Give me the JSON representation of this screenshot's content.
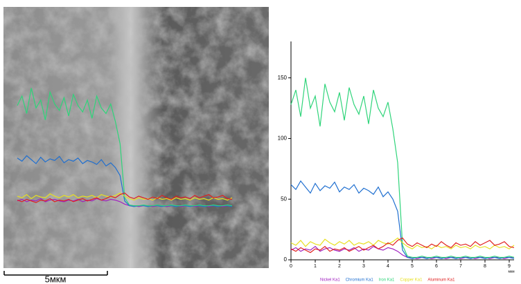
{
  "chart_data": {
    "type": "line",
    "scale_bar_label": "5мкм",
    "x_label": "мкм",
    "x": [
      0,
      0.2,
      0.4,
      0.6,
      0.8,
      1,
      1.2,
      1.4,
      1.6,
      1.8,
      2,
      2.2,
      2.4,
      2.6,
      2.8,
      3,
      3.2,
      3.4,
      3.6,
      3.8,
      4,
      4.2,
      4.4,
      4.6,
      4.8,
      5,
      5.2,
      5.4,
      5.6,
      5.8,
      6,
      6.2,
      6.4,
      6.6,
      6.8,
      7,
      7.2,
      7.4,
      7.6,
      7.8,
      8,
      8.2,
      8.4,
      8.6,
      8.8,
      9,
      9.2
    ],
    "xlim": [
      0,
      9.2
    ],
    "xticks": [
      0,
      1,
      2,
      3,
      4,
      5,
      6,
      7,
      8,
      9
    ],
    "ylim": [
      0,
      180
    ],
    "yticks": [
      0,
      50,
      100,
      150
    ],
    "series": [
      {
        "name": "Nickel Ka1",
        "color": "#a020c0",
        "values": [
          8,
          10,
          7,
          9,
          8,
          11,
          7,
          9,
          10,
          8,
          7,
          9,
          8,
          10,
          7,
          9,
          8,
          11,
          9,
          8,
          10,
          9,
          7,
          4,
          2,
          2,
          1,
          2,
          2,
          1,
          2,
          2,
          1,
          2,
          2,
          1,
          2,
          2,
          1,
          2,
          2,
          1,
          2,
          2,
          1,
          2,
          2
        ]
      },
      {
        "name": "Chromium Ka1",
        "color": "#1f6fd0",
        "values": [
          62,
          58,
          65,
          60,
          55,
          63,
          57,
          61,
          59,
          64,
          56,
          60,
          58,
          62,
          55,
          59,
          57,
          54,
          60,
          52,
          56,
          50,
          40,
          8,
          2,
          1,
          2,
          2,
          1,
          2,
          2,
          1,
          2,
          2,
          1,
          2,
          2,
          1,
          2,
          2,
          1,
          2,
          2,
          1,
          2,
          2,
          1
        ]
      },
      {
        "name": "Iron Ka1",
        "color": "#2fd47a",
        "values": [
          128,
          140,
          118,
          150,
          125,
          135,
          110,
          145,
          130,
          122,
          138,
          115,
          142,
          128,
          120,
          135,
          112,
          140,
          125,
          118,
          130,
          108,
          80,
          12,
          3,
          2,
          2,
          3,
          2,
          2,
          3,
          2,
          2,
          3,
          2,
          2,
          3,
          2,
          2,
          3,
          2,
          2,
          3,
          2,
          2,
          3,
          2
        ]
      },
      {
        "name": "Copper Ka1",
        "color": "#e8e020",
        "values": [
          14,
          12,
          16,
          11,
          15,
          13,
          12,
          17,
          14,
          12,
          15,
          13,
          16,
          12,
          14,
          13,
          15,
          12,
          16,
          14,
          13,
          15,
          18,
          14,
          11,
          9,
          12,
          10,
          11,
          9,
          12,
          10,
          11,
          9,
          12,
          10,
          11,
          9,
          12,
          10,
          11,
          9,
          12,
          10,
          11,
          9,
          12
        ]
      },
      {
        "name": "Aluminum Ka1",
        "color": "#e02020",
        "values": [
          9,
          7,
          10,
          8,
          6,
          9,
          8,
          11,
          7,
          9,
          8,
          10,
          7,
          9,
          11,
          8,
          10,
          12,
          9,
          11,
          14,
          12,
          16,
          18,
          13,
          11,
          14,
          12,
          10,
          13,
          11,
          15,
          12,
          10,
          14,
          12,
          13,
          11,
          15,
          12,
          14,
          16,
          12,
          13,
          15,
          11,
          10
        ]
      }
    ]
  }
}
